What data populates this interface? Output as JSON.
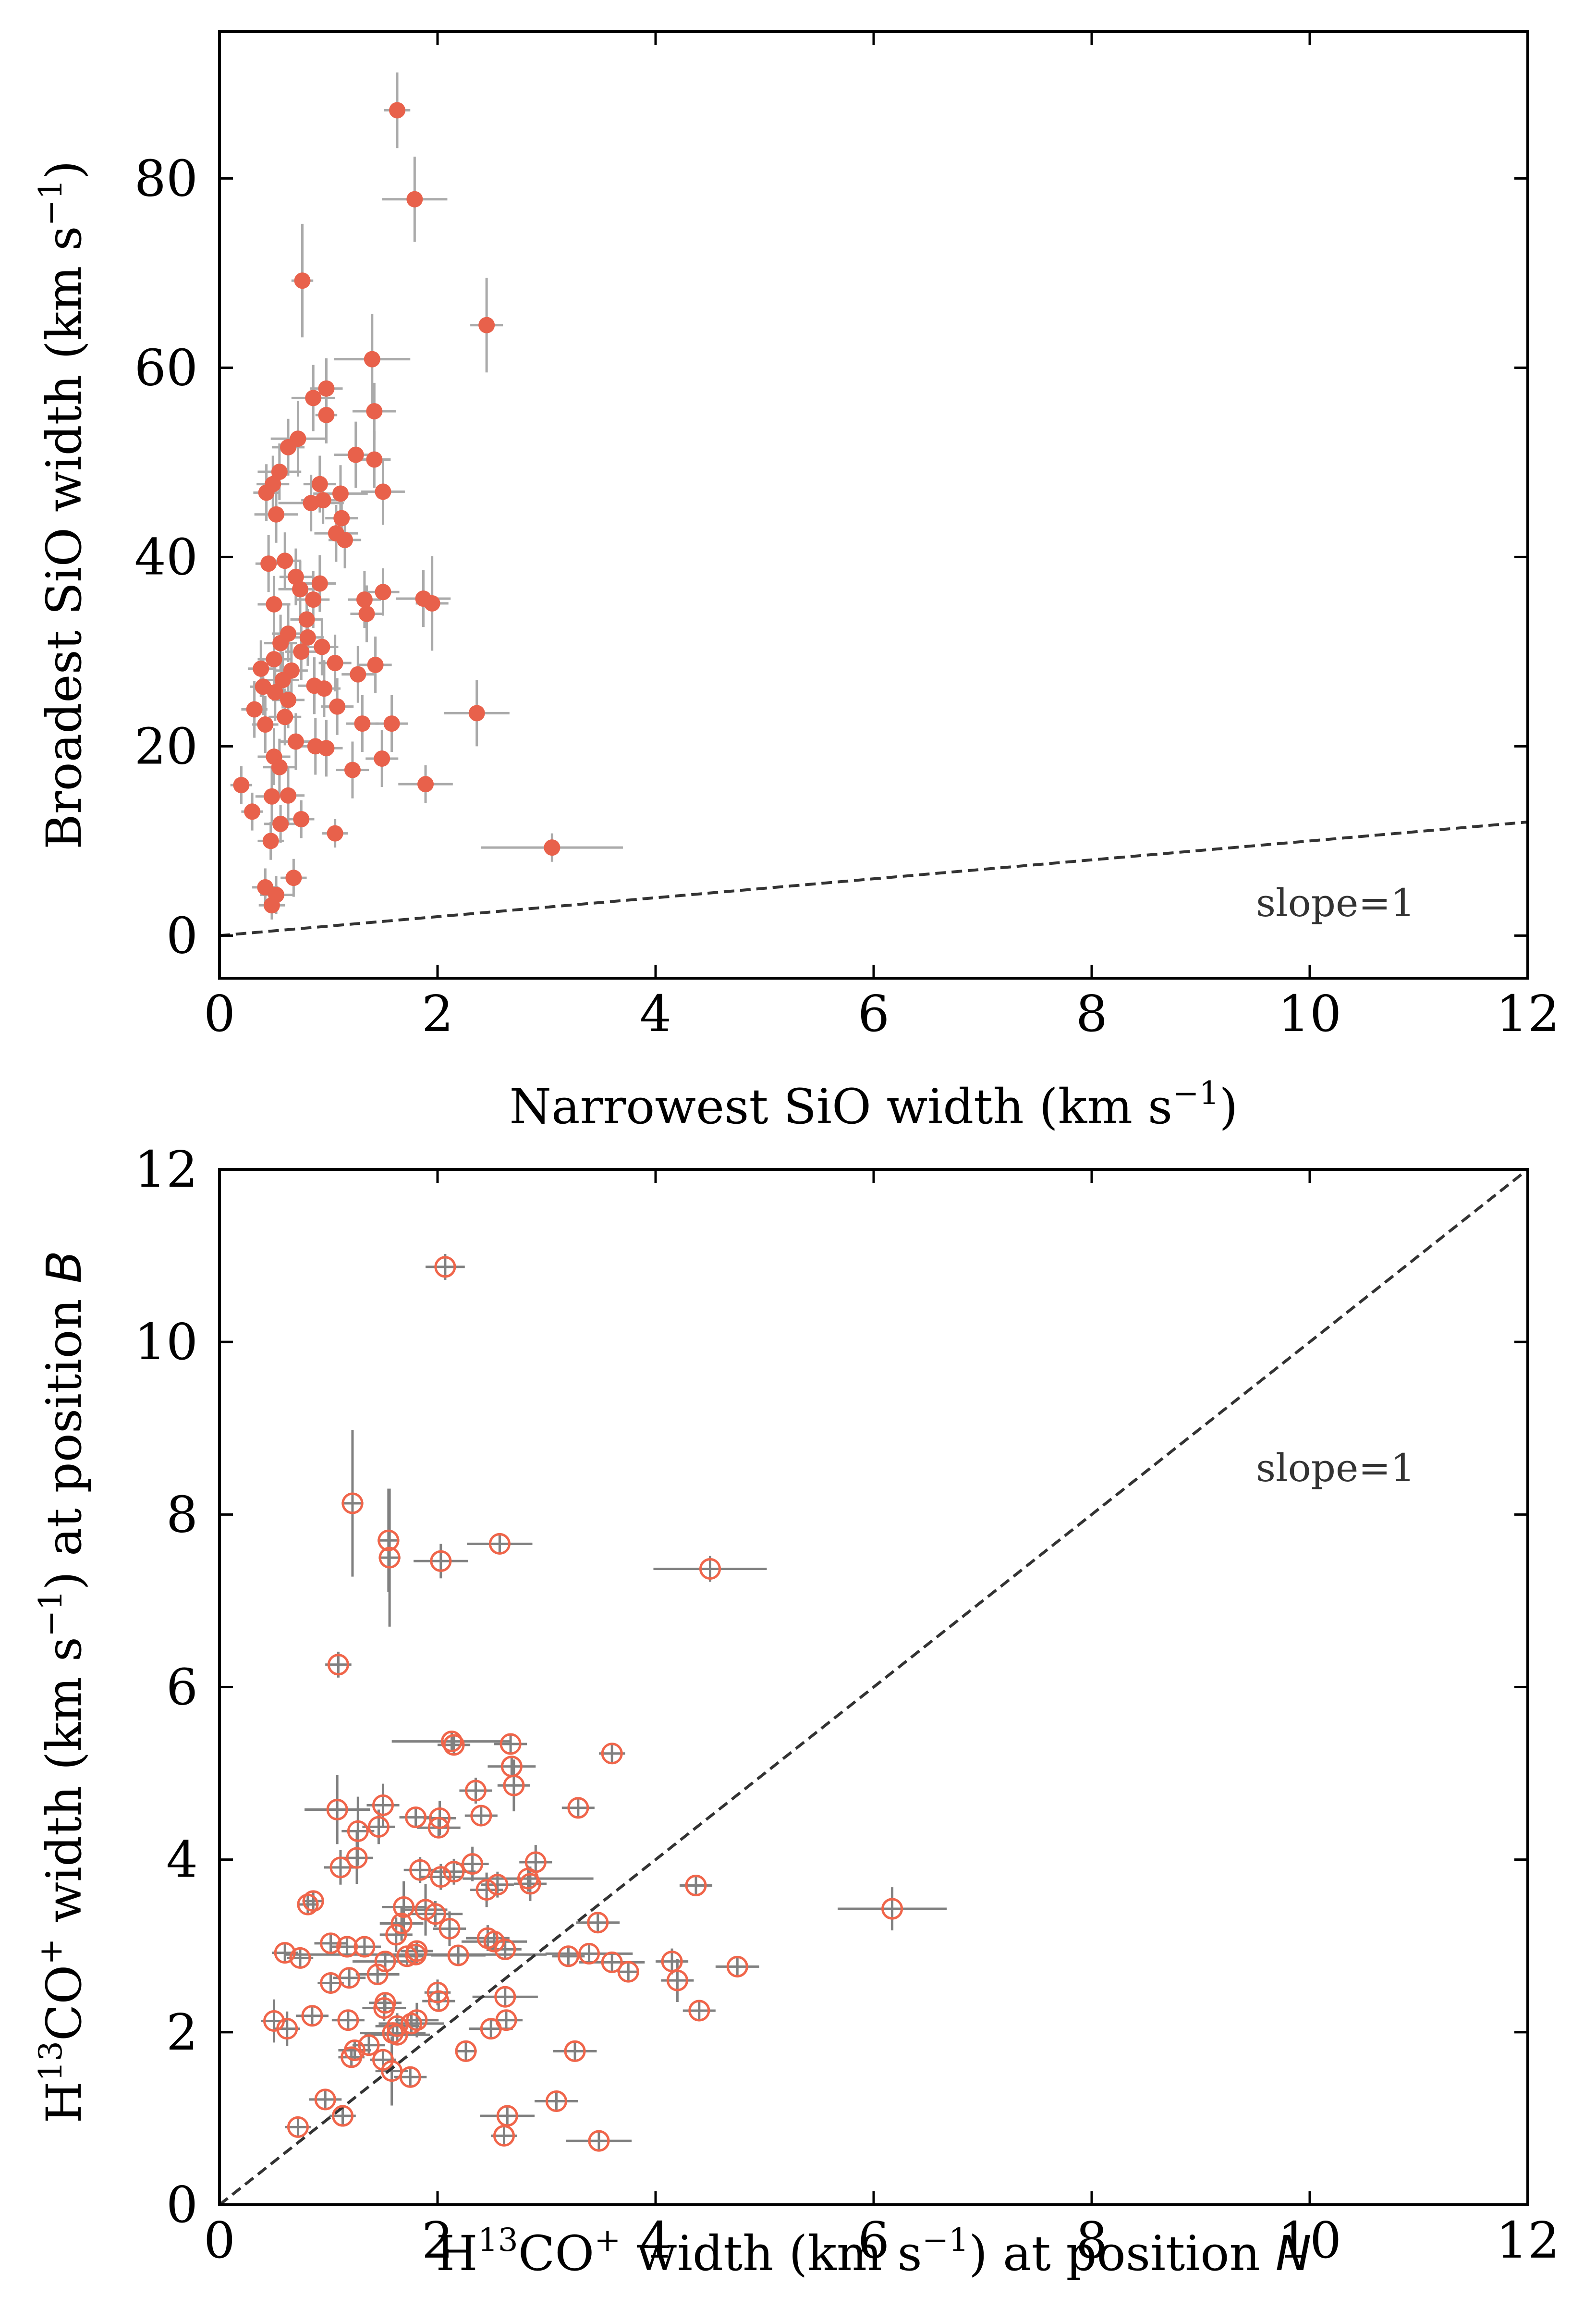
{
  "chart_data": [
    {
      "type": "scatter",
      "id": "top",
      "xlabel": {
        "main": "Narrowest SiO width (km s",
        "sup": "−1",
        "tail": ")"
      },
      "ylabel": {
        "main": "Broadest SiO width (km s",
        "sup": "−1",
        "tail": ")"
      },
      "xlim": [
        0,
        12
      ],
      "ylim": [
        -4.5,
        95.5
      ],
      "xticks": [
        0,
        2,
        4,
        6,
        8,
        10,
        12
      ],
      "yticks": [
        0,
        20,
        40,
        60,
        80
      ],
      "xtick_labels": [
        "0",
        "2",
        "4",
        "6",
        "8",
        "10",
        "12"
      ],
      "ytick_labels": [
        "0",
        "20",
        "40",
        "60",
        "80"
      ],
      "grid": false,
      "annotation": "slope=1",
      "reference_line": {
        "label": "slope=1",
        "slope": 1,
        "style": "dashed"
      },
      "marker": "filled-circle",
      "marker_color": "#e8614b",
      "errorbar_color": "#aaaaaa",
      "points": [
        [
          1.63,
          87.2,
          0.12,
          4.0
        ],
        [
          1.79,
          77.8,
          0.3,
          4.5
        ],
        [
          0.76,
          69.2,
          0.1,
          6.0
        ],
        [
          2.45,
          64.5,
          0.15,
          5.0
        ],
        [
          1.4,
          60.9,
          0.35,
          4.8
        ],
        [
          0.98,
          57.8,
          0.15,
          3.2
        ],
        [
          0.86,
          56.8,
          0.2,
          3.5
        ],
        [
          1.42,
          55.4,
          0.2,
          3.0
        ],
        [
          0.98,
          55.0,
          0.1,
          3.0
        ],
        [
          0.72,
          52.5,
          0.25,
          4.0
        ],
        [
          0.63,
          51.6,
          0.15,
          3.0
        ],
        [
          1.25,
          50.8,
          0.2,
          3.5
        ],
        [
          1.42,
          50.3,
          0.15,
          3.0
        ],
        [
          0.55,
          49.0,
          0.2,
          3.0
        ],
        [
          0.49,
          47.7,
          0.15,
          3.0
        ],
        [
          0.92,
          47.7,
          0.15,
          3.0
        ],
        [
          0.43,
          46.8,
          0.12,
          3.0
        ],
        [
          1.11,
          46.7,
          0.25,
          3.0
        ],
        [
          1.5,
          46.9,
          0.2,
          3.5
        ],
        [
          0.95,
          46.0,
          0.2,
          2.5
        ],
        [
          0.84,
          45.7,
          0.3,
          3.0
        ],
        [
          0.52,
          44.5,
          0.2,
          3.0
        ],
        [
          1.12,
          44.1,
          0.15,
          3.0
        ],
        [
          1.07,
          42.5,
          0.2,
          3.0
        ],
        [
          1.15,
          41.8,
          0.15,
          3.0
        ],
        [
          0.45,
          39.3,
          0.12,
          3.0
        ],
        [
          0.6,
          39.6,
          0.15,
          3.0
        ],
        [
          0.7,
          37.9,
          0.15,
          3.0
        ],
        [
          0.92,
          37.2,
          0.15,
          3.0
        ],
        [
          0.74,
          36.6,
          0.2,
          3.0
        ],
        [
          1.5,
          36.3,
          0.15,
          2.5
        ],
        [
          0.86,
          35.5,
          0.15,
          3.0
        ],
        [
          0.5,
          35.0,
          0.15,
          3.0
        ],
        [
          1.33,
          35.5,
          0.15,
          3.0
        ],
        [
          1.87,
          35.6,
          0.25,
          3.0
        ],
        [
          1.95,
          35.1,
          0.15,
          5.0
        ],
        [
          1.35,
          34.0,
          0.15,
          3.0
        ],
        [
          0.8,
          33.4,
          0.15,
          3.0
        ],
        [
          0.63,
          31.9,
          0.15,
          3.0
        ],
        [
          0.81,
          31.5,
          0.15,
          3.0
        ],
        [
          0.56,
          30.9,
          0.15,
          3.0
        ],
        [
          0.94,
          30.5,
          0.15,
          3.0
        ],
        [
          0.75,
          30.0,
          0.15,
          3.0
        ],
        [
          0.5,
          29.2,
          0.15,
          3.0
        ],
        [
          1.06,
          28.8,
          0.15,
          3.0
        ],
        [
          1.43,
          28.6,
          0.15,
          3.0
        ],
        [
          0.38,
          28.2,
          0.12,
          3.0
        ],
        [
          0.66,
          28.0,
          0.15,
          3.0
        ],
        [
          1.27,
          27.6,
          0.15,
          3.0
        ],
        [
          0.58,
          27.0,
          0.15,
          3.0
        ],
        [
          0.4,
          26.3,
          0.12,
          3.0
        ],
        [
          0.87,
          26.4,
          0.15,
          3.0
        ],
        [
          0.96,
          26.1,
          0.15,
          3.0
        ],
        [
          0.51,
          25.7,
          0.15,
          3.0
        ],
        [
          0.63,
          24.9,
          0.15,
          3.0
        ],
        [
          1.08,
          24.2,
          0.15,
          3.0
        ],
        [
          0.32,
          23.9,
          0.12,
          3.0
        ],
        [
          2.36,
          23.5,
          0.3,
          3.5
        ],
        [
          0.6,
          23.1,
          0.15,
          3.0
        ],
        [
          0.42,
          22.3,
          0.12,
          3.0
        ],
        [
          1.31,
          22.4,
          0.15,
          3.0
        ],
        [
          1.58,
          22.4,
          0.15,
          3.0
        ],
        [
          0.7,
          20.5,
          0.15,
          3.0
        ],
        [
          0.88,
          20.0,
          0.15,
          3.0
        ],
        [
          0.98,
          19.8,
          0.15,
          3.0
        ],
        [
          0.5,
          18.9,
          0.15,
          3.0
        ],
        [
          1.49,
          18.7,
          0.15,
          3.0
        ],
        [
          0.55,
          17.8,
          0.15,
          3.0
        ],
        [
          1.22,
          17.5,
          0.15,
          3.0
        ],
        [
          0.2,
          15.9,
          0.1,
          2.0
        ],
        [
          1.89,
          16.0,
          0.25,
          2.0
        ],
        [
          0.48,
          14.7,
          0.15,
          3.0
        ],
        [
          0.63,
          14.8,
          0.15,
          3.0
        ],
        [
          0.3,
          13.1,
          0.1,
          2.0
        ],
        [
          0.75,
          12.3,
          0.12,
          2.0
        ],
        [
          0.56,
          11.8,
          0.15,
          2.0
        ],
        [
          1.06,
          10.8,
          0.12,
          1.5
        ],
        [
          0.47,
          10.0,
          0.12,
          2.0
        ],
        [
          3.05,
          9.3,
          0.65,
          1.5
        ],
        [
          0.68,
          6.1,
          0.12,
          2.0
        ],
        [
          0.42,
          5.1,
          0.12,
          2.0
        ],
        [
          0.52,
          4.3,
          0.15,
          2.0
        ],
        [
          0.48,
          3.2,
          0.12,
          1.5
        ]
      ]
    },
    {
      "type": "scatter",
      "id": "bottom",
      "xlabel": {
        "pre": "H",
        "sup1": "13",
        "mid": "CO",
        "sup2": "+",
        "main": " width (km s",
        "sup3": "−1",
        "tail": ") at position ",
        "italic": "N"
      },
      "ylabel": {
        "pre": "H",
        "sup1": "13",
        "mid": "CO",
        "sup2": "+",
        "main": " width (km s",
        "sup3": "−1",
        "tail": ") at position ",
        "italic": "B"
      },
      "xlim": [
        0,
        12
      ],
      "ylim": [
        0,
        12
      ],
      "xticks": [
        0,
        2,
        4,
        6,
        8,
        10,
        12
      ],
      "yticks": [
        0,
        2,
        4,
        6,
        8,
        10,
        12
      ],
      "xtick_labels": [
        "0",
        "2",
        "4",
        "6",
        "8",
        "10",
        "12"
      ],
      "ytick_labels": [
        "0",
        "2",
        "4",
        "6",
        "8",
        "10",
        "12"
      ],
      "grid": false,
      "annotation": "slope=1",
      "reference_line": {
        "label": "slope=1",
        "slope": 1,
        "style": "dashed"
      },
      "marker": "open-circle",
      "marker_color": "#f0654a",
      "errorbar_color": "#808080",
      "points": [
        [
          2.07,
          10.87,
          0.18,
          0.15
        ],
        [
          1.22,
          8.13,
          0.1,
          0.85
        ],
        [
          1.55,
          7.7,
          0.1,
          0.6
        ],
        [
          1.56,
          7.5,
          0.1,
          0.8
        ],
        [
          2.03,
          7.46,
          0.25,
          0.2
        ],
        [
          2.57,
          7.66,
          0.3,
          0.1
        ],
        [
          4.5,
          7.37,
          0.52,
          0.15
        ],
        [
          1.09,
          6.26,
          0.12,
          0.15
        ],
        [
          2.13,
          5.37,
          0.55,
          0.1
        ],
        [
          2.67,
          5.34,
          0.15,
          0.1
        ],
        [
          2.15,
          5.33,
          0.15,
          0.1
        ],
        [
          3.6,
          5.23,
          0.12,
          0.1
        ],
        [
          2.68,
          5.08,
          0.22,
          0.12
        ],
        [
          2.7,
          4.86,
          0.15,
          0.3
        ],
        [
          2.35,
          4.8,
          0.15,
          0.15
        ],
        [
          1.5,
          4.63,
          0.15,
          0.25
        ],
        [
          1.08,
          4.58,
          0.3,
          0.4
        ],
        [
          3.29,
          4.6,
          0.15,
          0.1
        ],
        [
          2.02,
          4.48,
          0.15,
          0.2
        ],
        [
          1.8,
          4.49,
          0.15,
          0.1
        ],
        [
          2.4,
          4.51,
          0.15,
          0.1
        ],
        [
          1.46,
          4.38,
          0.15,
          0.2
        ],
        [
          2.01,
          4.37,
          0.2,
          0.1
        ],
        [
          1.27,
          4.33,
          0.15,
          0.4
        ],
        [
          1.26,
          4.02,
          0.15,
          0.3
        ],
        [
          2.9,
          3.97,
          0.15,
          0.2
        ],
        [
          2.32,
          3.95,
          0.15,
          0.2
        ],
        [
          1.11,
          3.91,
          0.15,
          0.2
        ],
        [
          1.84,
          3.88,
          0.15,
          0.15
        ],
        [
          2.15,
          3.86,
          0.2,
          0.15
        ],
        [
          2.03,
          3.8,
          0.2,
          0.15
        ],
        [
          2.83,
          3.78,
          0.6,
          0.15
        ],
        [
          2.85,
          3.72,
          0.15,
          0.2
        ],
        [
          2.55,
          3.71,
          0.15,
          0.15
        ],
        [
          4.37,
          3.7,
          0.15,
          0.1
        ],
        [
          2.45,
          3.65,
          0.15,
          0.2
        ],
        [
          0.86,
          3.52,
          0.1,
          0.1
        ],
        [
          0.81,
          3.48,
          0.1,
          0.1
        ],
        [
          1.69,
          3.45,
          0.2,
          0.3
        ],
        [
          1.89,
          3.42,
          0.2,
          0.3
        ],
        [
          6.17,
          3.43,
          0.5,
          0.25
        ],
        [
          1.98,
          3.37,
          0.25,
          0.15
        ],
        [
          1.67,
          3.26,
          0.2,
          0.2
        ],
        [
          3.47,
          3.27,
          0.2,
          0.1
        ],
        [
          2.11,
          3.2,
          0.15,
          0.2
        ],
        [
          1.62,
          3.13,
          0.15,
          0.2
        ],
        [
          2.46,
          3.09,
          0.2,
          0.15
        ],
        [
          2.52,
          3.05,
          0.3,
          0.1
        ],
        [
          1.02,
          3.03,
          0.15,
          0.1
        ],
        [
          1.17,
          2.99,
          0.15,
          0.1
        ],
        [
          1.33,
          2.99,
          0.15,
          0.1
        ],
        [
          2.62,
          2.96,
          0.15,
          0.1
        ],
        [
          1.81,
          2.94,
          0.15,
          0.1
        ],
        [
          0.6,
          2.92,
          0.12,
          0.1
        ],
        [
          1.8,
          2.9,
          1.2,
          0.1
        ],
        [
          3.39,
          2.91,
          0.4,
          0.1
        ],
        [
          2.19,
          2.89,
          0.25,
          0.1
        ],
        [
          3.2,
          2.88,
          0.15,
          0.1
        ],
        [
          1.72,
          2.88,
          0.15,
          0.1
        ],
        [
          0.74,
          2.86,
          0.12,
          0.1
        ],
        [
          1.52,
          2.82,
          0.3,
          0.1
        ],
        [
          4.15,
          2.82,
          0.15,
          0.15
        ],
        [
          3.6,
          2.81,
          0.3,
          0.1
        ],
        [
          4.75,
          2.76,
          0.2,
          0.1
        ],
        [
          3.75,
          2.7,
          0.1,
          0.1
        ],
        [
          1.45,
          2.67,
          0.2,
          0.1
        ],
        [
          1.19,
          2.63,
          0.15,
          0.1
        ],
        [
          4.2,
          2.6,
          0.15,
          0.25
        ],
        [
          1.02,
          2.57,
          0.12,
          0.1
        ],
        [
          2.0,
          2.46,
          0.12,
          0.15
        ],
        [
          2.62,
          2.41,
          0.3,
          0.1
        ],
        [
          2.01,
          2.36,
          0.15,
          0.1
        ],
        [
          1.52,
          2.34,
          0.15,
          0.1
        ],
        [
          1.51,
          2.28,
          0.2,
          0.15
        ],
        [
          4.4,
          2.25,
          0.15,
          0.1
        ],
        [
          0.85,
          2.19,
          0.15,
          0.1
        ],
        [
          1.18,
          2.14,
          0.15,
          0.1
        ],
        [
          2.63,
          2.14,
          0.15,
          0.1
        ],
        [
          1.81,
          2.14,
          0.2,
          0.2
        ],
        [
          0.5,
          2.13,
          0.12,
          0.25
        ],
        [
          1.76,
          2.1,
          0.3,
          0.1
        ],
        [
          1.63,
          2.07,
          0.2,
          0.15
        ],
        [
          0.62,
          2.04,
          0.12,
          0.2
        ],
        [
          2.49,
          2.04,
          0.2,
          0.1
        ],
        [
          1.59,
          1.99,
          0.3,
          0.1
        ],
        [
          1.63,
          1.97,
          0.3,
          0.1
        ],
        [
          1.37,
          1.85,
          0.15,
          0.1
        ],
        [
          1.24,
          1.79,
          0.15,
          0.1
        ],
        [
          3.26,
          1.78,
          0.2,
          0.1
        ],
        [
          2.26,
          1.78,
          0.1,
          0.1
        ],
        [
          1.21,
          1.71,
          0.12,
          0.1
        ],
        [
          1.5,
          1.68,
          0.12,
          0.1
        ],
        [
          1.58,
          1.55,
          0.15,
          0.4
        ],
        [
          1.75,
          1.48,
          0.15,
          0.1
        ],
        [
          0.97,
          1.22,
          0.15,
          0.1
        ],
        [
          3.09,
          1.2,
          0.2,
          0.1
        ],
        [
          1.13,
          1.03,
          0.12,
          0.1
        ],
        [
          2.64,
          1.03,
          0.25,
          0.1
        ],
        [
          0.72,
          0.9,
          0.12,
          0.1
        ],
        [
          2.61,
          0.8,
          0.12,
          0.1
        ],
        [
          3.48,
          0.74,
          0.3,
          0.1
        ]
      ]
    }
  ]
}
